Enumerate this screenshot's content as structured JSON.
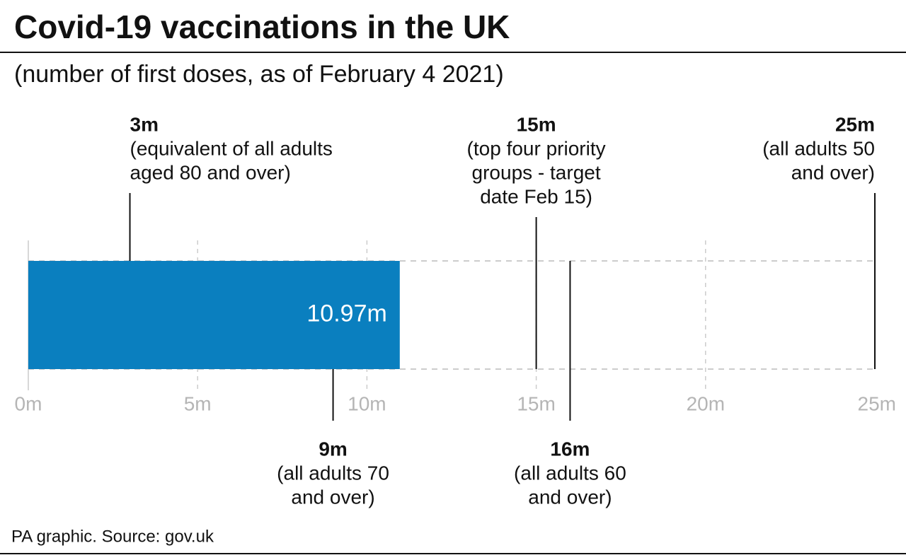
{
  "chart_data": {
    "type": "bar",
    "orientation": "horizontal",
    "title": "Covid-19 vaccinations in the UK",
    "subtitle": "(number of first doses, as of February 4 2021)",
    "source": "PA graphic. Source: gov.uk",
    "values": [
      10.97
    ],
    "value_labels": [
      "10.97m"
    ],
    "color": "#0a7fbf",
    "xlim": [
      0,
      25
    ],
    "xticks": [
      {
        "value": 0,
        "label": "0m"
      },
      {
        "value": 5,
        "label": "5m"
      },
      {
        "value": 10,
        "label": "10m"
      },
      {
        "value": 15,
        "label": "15m"
      },
      {
        "value": 20,
        "label": "20m"
      },
      {
        "value": 25,
        "label": "25m"
      }
    ],
    "grid": true,
    "annotations": [
      {
        "value": 3,
        "label": "3m",
        "text": [
          "(equivalent of all adults",
          "aged 80 and over)"
        ],
        "position": "top",
        "align": "start"
      },
      {
        "value": 15,
        "label": "15m",
        "text": [
          "(top four priority",
          "groups - target",
          "date Feb 15)"
        ],
        "position": "top",
        "align": "middle"
      },
      {
        "value": 25,
        "label": "25m",
        "text": [
          "(all adults 50",
          "and over)"
        ],
        "position": "top",
        "align": "end"
      },
      {
        "value": 9,
        "label": "9m",
        "text": [
          "(all adults 70",
          "and over)"
        ],
        "position": "bottom",
        "align": "middle"
      },
      {
        "value": 16,
        "label": "16m",
        "text": [
          "(all adults 60",
          "and over)"
        ],
        "position": "bottom",
        "align": "middle"
      }
    ]
  }
}
